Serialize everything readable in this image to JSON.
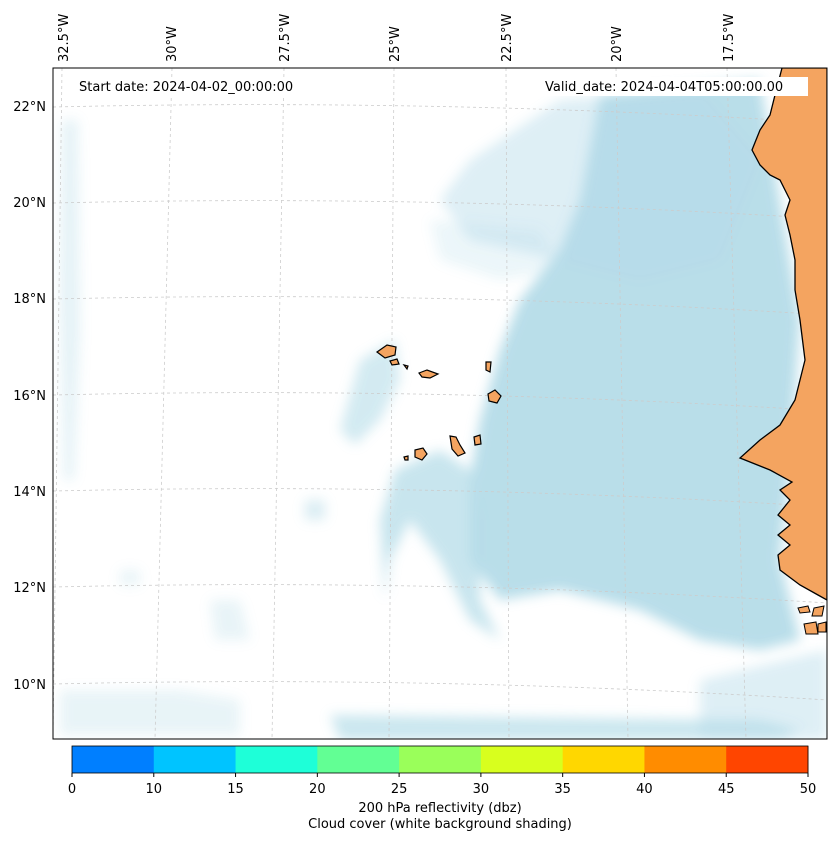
{
  "map": {
    "start_date_text": "Start date: 2024-04-02_00:00:00",
    "valid_date_text": "Valid_date: 2024-04-04T05:00:00.00",
    "lon_labels": [
      "32.5°W",
      "30°W",
      "27.5°W",
      "25°W",
      "22.5°W",
      "20°W",
      "17.5°W"
    ],
    "lat_labels": [
      "22°N",
      "20°N",
      "18°N",
      "16°N",
      "14°N",
      "12°N",
      "10°N"
    ],
    "land_color": "#f4a460",
    "cloud_color": "#add8e6",
    "coastline_color": "#000000"
  },
  "colorbar": {
    "ticks": [
      "0",
      "10",
      "15",
      "20",
      "25",
      "30",
      "35",
      "40",
      "45",
      "50"
    ],
    "colors": [
      "#007fff",
      "#00c4ff",
      "#1effd8",
      "#62ff94",
      "#9aff5a",
      "#d8ff1e",
      "#ffd700",
      "#ff8c00",
      "#ff4500"
    ],
    "label_line1": "200 hPa reflectivity (dbz)",
    "label_line2": "Cloud cover (white background shading)"
  }
}
